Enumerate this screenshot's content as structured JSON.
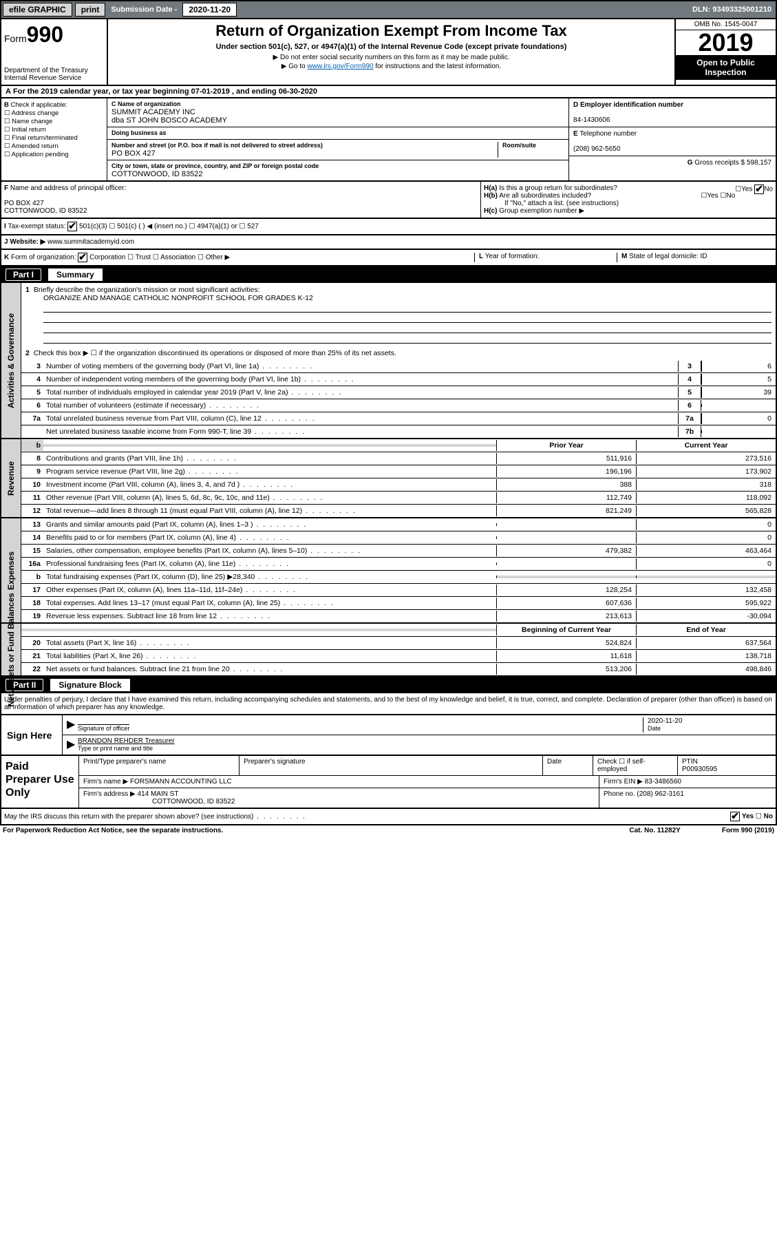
{
  "topbar": {
    "efile": "efile GRAPHIC",
    "print": "print",
    "subLabel": "Submission Date - ",
    "subDate": "2020-11-20",
    "dln": "DLN: 93493325001210"
  },
  "hdr": {
    "form": "Form",
    "num": "990",
    "dept": "Department of the Treasury\nInternal Revenue Service",
    "title": "Return of Organization Exempt From Income Tax",
    "sub": "Under section 501(c), 527, or 4947(a)(1) of the Internal Revenue Code (except private foundations)",
    "note1": "Do not enter social security numbers on this form as it may be made public.",
    "note2a": "Go to ",
    "note2link": "www.irs.gov/Form990",
    "note2b": " for instructions and the latest information.",
    "omb": "OMB No. 1545-0047",
    "year": "2019",
    "open": "Open to Public",
    "insp": "Inspection"
  },
  "A": {
    "text": "For the 2019 calendar year, or tax year beginning 07-01-2019    , and ending 06-30-2020"
  },
  "B": {
    "label": "Check if applicable:",
    "items": [
      "Address change",
      "Name change",
      "Initial return",
      "Final return/terminated",
      "Amended return",
      "Application pending"
    ]
  },
  "C": {
    "nameLabel": "Name of organization",
    "name": "SUMMIT ACADEMY INC",
    "dba": "dba ST JOHN BOSCO ACADEMY",
    "dbal": "Doing business as",
    "streetLabel": "Number and street (or P.O. box if mail is not delivered to street address)",
    "roomLabel": "Room/suite",
    "street": "PO BOX 427",
    "cityLabel": "City or town, state or province, country, and ZIP or foreign postal code",
    "city": "COTTONWOOD, ID  83522"
  },
  "D": {
    "label": "Employer identification number",
    "val": "84-1430606"
  },
  "E": {
    "label": "Telephone number",
    "val": "(208) 962-5650"
  },
  "G": {
    "label": "Gross receipts $",
    "val": "598,157"
  },
  "F": {
    "label": "Name and address of principal officer:",
    "addr1": "PO BOX 427",
    "addr2": "COTTONWOOD, ID  83522"
  },
  "H": {
    "a": "Is this a group return for subordinates?",
    "b": "Are all subordinates included?",
    "bnote": "If \"No,\" attach a list. (see instructions)",
    "c": "Group exemption number ▶"
  },
  "I": {
    "label": "Tax-exempt status:",
    "opts": [
      "501(c)(3)",
      "501(c) (  ) ◀ (insert no.)",
      "4947(a)(1) or",
      "527"
    ]
  },
  "J": {
    "label": "Website: ▶",
    "val": "www.summitacademyid.com"
  },
  "K": {
    "label": "Form of organization:",
    "opts": [
      "Corporation",
      "Trust",
      "Association",
      "Other ▶"
    ]
  },
  "L": {
    "label": "Year of formation:",
    "val": ""
  },
  "M": {
    "label": "State of legal domicile: ",
    "val": "ID"
  },
  "partI": {
    "label": "Part I",
    "title": "Summary"
  },
  "summary": {
    "l1": {
      "label": "Briefly describe the organization's mission or most significant activities:",
      "val": "ORGANIZE AND MANAGE CATHOLIC NONPROFIT SCHOOL FOR GRADES K-12"
    },
    "l2": "Check this box ▶ ☐  if the organization discontinued its operations or disposed of more than 25% of its net assets.",
    "rows": [
      {
        "n": "3",
        "d": "Number of voting members of the governing body (Part VI, line 1a)",
        "b": "3",
        "v": "6"
      },
      {
        "n": "4",
        "d": "Number of independent voting members of the governing body (Part VI, line 1b)",
        "b": "4",
        "v": "5"
      },
      {
        "n": "5",
        "d": "Total number of individuals employed in calendar year 2019 (Part V, line 2a)",
        "b": "5",
        "v": "39"
      },
      {
        "n": "6",
        "d": "Total number of volunteers (estimate if necessary)",
        "b": "6",
        "v": ""
      },
      {
        "n": "7a",
        "d": "Total unrelated business revenue from Part VIII, column (C), line 12",
        "b": "7a",
        "v": "0"
      },
      {
        "n": "",
        "d": "Net unrelated business taxable income from Form 990-T, line 39",
        "b": "7b",
        "v": ""
      }
    ],
    "hdrPrior": "Prior Year",
    "hdrCurr": "Current Year",
    "rev": [
      {
        "n": "8",
        "d": "Contributions and grants (Part VIII, line 1h)",
        "p": "511,916",
        "c": "273,516"
      },
      {
        "n": "9",
        "d": "Program service revenue (Part VIII, line 2g)",
        "p": "196,196",
        "c": "173,902"
      },
      {
        "n": "10",
        "d": "Investment income (Part VIII, column (A), lines 3, 4, and 7d )",
        "p": "388",
        "c": "318"
      },
      {
        "n": "11",
        "d": "Other revenue (Part VIII, column (A), lines 5, 6d, 8c, 9c, 10c, and 11e)",
        "p": "112,749",
        "c": "118,092"
      },
      {
        "n": "12",
        "d": "Total revenue—add lines 8 through 11 (must equal Part VIII, column (A), line 12)",
        "p": "821,249",
        "c": "565,828"
      }
    ],
    "exp": [
      {
        "n": "13",
        "d": "Grants and similar amounts paid (Part IX, column (A), lines 1–3 )",
        "p": "",
        "c": "0"
      },
      {
        "n": "14",
        "d": "Benefits paid to or for members (Part IX, column (A), line 4)",
        "p": "",
        "c": "0"
      },
      {
        "n": "15",
        "d": "Salaries, other compensation, employee benefits (Part IX, column (A), lines 5–10)",
        "p": "479,382",
        "c": "463,464"
      },
      {
        "n": "16a",
        "d": "Professional fundraising fees (Part IX, column (A), line 11e)",
        "p": "",
        "c": "0"
      },
      {
        "n": "b",
        "d": "Total fundraising expenses (Part IX, column (D), line 25) ▶28,340",
        "p": "GRAY",
        "c": "GRAY"
      },
      {
        "n": "17",
        "d": "Other expenses (Part IX, column (A), lines 11a–11d, 11f–24e)",
        "p": "128,254",
        "c": "132,458"
      },
      {
        "n": "18",
        "d": "Total expenses. Add lines 13–17 (must equal Part IX, column (A), line 25)",
        "p": "607,636",
        "c": "595,922"
      },
      {
        "n": "19",
        "d": "Revenue less expenses. Subtract line 18 from line 12",
        "p": "213,613",
        "c": "-30,094"
      }
    ],
    "hdrBeg": "Beginning of Current Year",
    "hdrEnd": "End of Year",
    "net": [
      {
        "n": "20",
        "d": "Total assets (Part X, line 16)",
        "p": "524,824",
        "c": "637,564"
      },
      {
        "n": "21",
        "d": "Total liabilities (Part X, line 26)",
        "p": "11,618",
        "c": "138,718"
      },
      {
        "n": "22",
        "d": "Net assets or fund balances. Subtract line 21 from line 20",
        "p": "513,206",
        "c": "498,846"
      }
    ]
  },
  "partII": {
    "label": "Part II",
    "title": "Signature Block"
  },
  "sigText": "Under penalties of perjury, I declare that I have examined this return, including accompanying schedules and statements, and to the best of my knowledge and belief, it is true, correct, and complete. Declaration of preparer (other than officer) is based on all information of which preparer has any knowledge.",
  "sign": {
    "here": "Sign Here",
    "sigOf": "Signature of officer",
    "date": "2020-11-20",
    "dateL": "Date",
    "name": "BRANDON REHDER  Treasurer",
    "nameL": "Type or print name and title"
  },
  "paid": {
    "label": "Paid Preparer Use Only",
    "h": [
      "Print/Type preparer's name",
      "Preparer's signature",
      "Date"
    ],
    "chk": "Check ☐ if self-employed",
    "ptin": "PTIN",
    "ptinv": "P00930595",
    "firmL": "Firm's name    ▶",
    "firm": "FORSMANN ACCOUNTING LLC",
    "einL": "Firm's EIN ▶",
    "ein": "83-3486560",
    "addrL": "Firm's address ▶",
    "addr1": "414 MAIN ST",
    "addr2": "COTTONWOOD, ID  83522",
    "phoneL": "Phone no.",
    "phone": "(208) 962-3161"
  },
  "discuss": "May the IRS discuss this return with the preparer shown above? (see instructions)",
  "footer": {
    "l": "For Paperwork Reduction Act Notice, see the separate instructions.",
    "c": "Cat. No. 11282Y",
    "r": "Form 990 (2019)"
  }
}
